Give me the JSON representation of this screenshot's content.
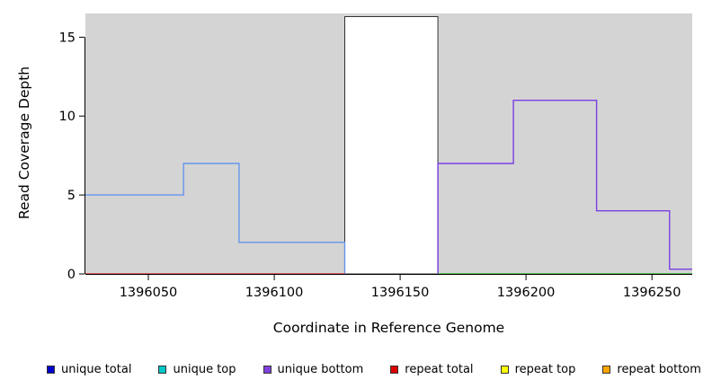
{
  "chart_data": {
    "type": "line",
    "subtype": "step-coverage-plot",
    "title": "",
    "xlabel": "Coordinate in Reference Genome",
    "ylabel": "Read Coverage Depth",
    "xlim": [
      1396025,
      1396266
    ],
    "ylim": [
      0,
      16.5
    ],
    "xticks": [
      1396050,
      1396100,
      1396150,
      1396200,
      1396250
    ],
    "yticks": [
      0,
      5,
      10,
      15
    ],
    "plot_bg": "#d4d4d4",
    "axis_color": "#000000",
    "grid": false,
    "legend_position": "bottom",
    "mask_region": {
      "x0": 1396128,
      "x1": 1396165,
      "ytop": 16.3,
      "fill": "#ffffff",
      "border": "#333333"
    },
    "series": [
      {
        "name": "coverage-left-unique",
        "color": "#6495ed",
        "points": [
          [
            1396025,
            5
          ],
          [
            1396064,
            5
          ],
          [
            1396064,
            7
          ],
          [
            1396086,
            7
          ],
          [
            1396086,
            2
          ],
          [
            1396128,
            2
          ],
          [
            1396128,
            0
          ]
        ]
      },
      {
        "name": "coverage-right-unique-bottom",
        "color": "#7b3fe4",
        "points": [
          [
            1396165,
            0
          ],
          [
            1396165,
            7
          ],
          [
            1396195,
            7
          ],
          [
            1396195,
            11
          ],
          [
            1396228,
            11
          ],
          [
            1396228,
            4
          ],
          [
            1396257,
            4
          ],
          [
            1396257,
            0.3
          ],
          [
            1396266,
            0.3
          ]
        ]
      },
      {
        "name": "baseline-left-repeat",
        "color": "#dd3333",
        "points": [
          [
            1396025,
            0
          ],
          [
            1396128,
            0
          ]
        ]
      },
      {
        "name": "baseline-right",
        "color": "#2eb82e",
        "points": [
          [
            1396165,
            0
          ],
          [
            1396266,
            0
          ]
        ]
      }
    ],
    "legend": [
      {
        "label": "unique total",
        "color": "#0000cc"
      },
      {
        "label": "unique top",
        "color": "#00c8c8"
      },
      {
        "label": "unique bottom",
        "color": "#8040dd"
      },
      {
        "label": "repeat total",
        "color": "#dd0000"
      },
      {
        "label": "repeat top",
        "color": "#ffff00"
      },
      {
        "label": "repeat bottom",
        "color": "#ffa500"
      }
    ]
  }
}
